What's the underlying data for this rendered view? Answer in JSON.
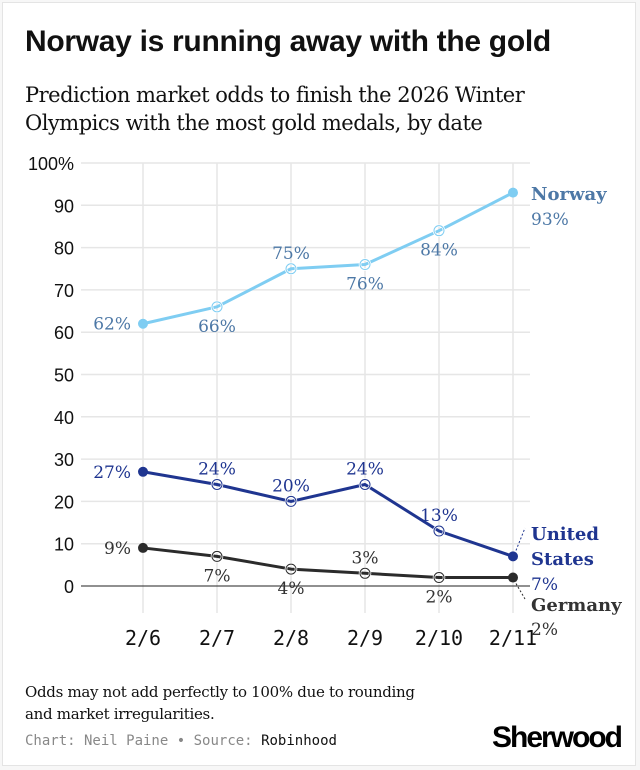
{
  "title": "Norway is running away with the gold",
  "subtitle": "Prediction market odds to finish the 2026 Winter Olympics with the most gold medals, by date",
  "note": "Odds may not add perfectly to 100% due to rounding and market irregularities.",
  "credit": {
    "chart_label": "Chart: Neil Paine",
    "separator": "•",
    "source_label": "Source:",
    "source": "Robinhood"
  },
  "logo": "Sherwood",
  "chart_data": {
    "type": "line",
    "title": "Norway is running away with the gold",
    "xlabel": "",
    "ylabel": "",
    "x": [
      "2/6",
      "2/7",
      "2/8",
      "2/9",
      "2/10",
      "2/11"
    ],
    "ylim": [
      0,
      100
    ],
    "yticks": [
      0,
      10,
      20,
      30,
      40,
      50,
      60,
      70,
      80,
      90,
      100
    ],
    "ytick_labels": [
      "0",
      "10",
      "20",
      "30",
      "40",
      "50",
      "60",
      "70",
      "80",
      "90",
      "100%"
    ],
    "grid": true,
    "legend": "direct labels at right end of lines",
    "series": [
      {
        "name": "Norway",
        "name_lines": [
          "Norway"
        ],
        "color": "#7fcdf2",
        "label_color": "#4d78a6",
        "values": [
          62,
          66,
          75,
          76,
          84,
          93
        ],
        "labels": [
          "62%",
          "66%",
          "75%",
          "76%",
          "84%",
          "93%"
        ],
        "label_pos": [
          "left",
          "below",
          "above",
          "below",
          "below",
          "end"
        ]
      },
      {
        "name": "United States",
        "name_lines": [
          "United",
          "States"
        ],
        "color": "#1f3590",
        "label_color": "#1f3590",
        "values": [
          27,
          24,
          20,
          24,
          13,
          7
        ],
        "labels": [
          "27%",
          "24%",
          "20%",
          "24%",
          "13%",
          "7%"
        ],
        "label_pos": [
          "left",
          "above",
          "above",
          "above",
          "above",
          "end"
        ]
      },
      {
        "name": "Germany",
        "name_lines": [
          "Germany"
        ],
        "color": "#2b2b2b",
        "label_color": "#333333",
        "values": [
          9,
          7,
          4,
          3,
          2,
          2
        ],
        "labels": [
          "9%",
          "7%",
          "4%",
          "3%",
          "2%",
          "2%"
        ],
        "label_pos": [
          "left",
          "below",
          "below",
          "above",
          "below",
          "end"
        ]
      }
    ]
  }
}
